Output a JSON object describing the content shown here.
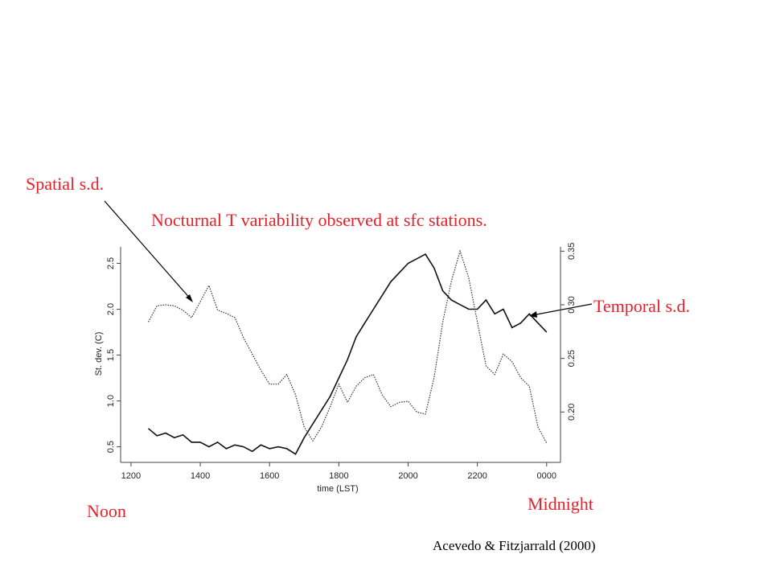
{
  "chart_data": {
    "type": "line",
    "title": "Nocturnal T variability observed at sfc stations.",
    "xlabel": "time (LST)",
    "ylabel": "St. dev. (C)",
    "annotations": [
      "Noon",
      "Midnight"
    ],
    "source": "Acevedo & Fitzjarrald (2000)",
    "x": [
      12.5,
      12.75,
      13,
      13.25,
      13.5,
      13.75,
      14,
      14.25,
      14.5,
      14.75,
      15,
      15.25,
      15.5,
      15.75,
      16,
      16.25,
      16.5,
      16.75,
      17,
      17.25,
      17.5,
      17.75,
      18,
      18.25,
      18.5,
      18.75,
      19,
      19.25,
      19.5,
      19.75,
      20,
      20.25,
      20.5,
      20.75,
      21,
      21.25,
      21.5,
      21.75,
      22,
      22.25,
      22.5,
      22.75,
      23,
      23.25,
      23.5,
      23.75,
      24
    ],
    "series": [
      {
        "name": "Temporal s.d.",
        "color": "#111111",
        "style": "solid",
        "axis": "y",
        "values": [
          0.7,
          0.62,
          0.65,
          0.6,
          0.63,
          0.55,
          0.55,
          0.5,
          0.55,
          0.48,
          0.52,
          0.5,
          0.45,
          0.52,
          0.48,
          0.5,
          0.48,
          0.42,
          0.6,
          0.75,
          0.9,
          1.05,
          1.25,
          1.45,
          1.7,
          1.85,
          2.0,
          2.15,
          2.3,
          2.4,
          2.5,
          2.55,
          2.6,
          2.45,
          2.2,
          2.1,
          2.05,
          2.0,
          2.0,
          2.1,
          1.95,
          2.0,
          1.8,
          1.85,
          1.95,
          1.85,
          1.75
        ]
      },
      {
        "name": "Spatial s.d.",
        "color": "#333333",
        "style": "dotted",
        "axis": "y2",
        "values": [
          0.284,
          0.299,
          0.3,
          0.299,
          0.295,
          0.288,
          0.303,
          0.318,
          0.295,
          0.292,
          0.288,
          0.269,
          0.254,
          0.239,
          0.226,
          0.226,
          0.235,
          0.216,
          0.186,
          0.173,
          0.186,
          0.205,
          0.226,
          0.209,
          0.224,
          0.232,
          0.235,
          0.216,
          0.205,
          0.209,
          0.21,
          0.2,
          0.198,
          0.232,
          0.284,
          0.322,
          0.35,
          0.325,
          0.284,
          0.243,
          0.235,
          0.254,
          0.247,
          0.232,
          0.224,
          0.186,
          0.171
        ]
      }
    ],
    "xlim": [
      11.7,
      24.4
    ],
    "xticks": [
      {
        "value": 12,
        "label": "1200"
      },
      {
        "value": 14,
        "label": "1400"
      },
      {
        "value": 16,
        "label": "1600"
      },
      {
        "value": 18,
        "label": "1800"
      },
      {
        "value": 20,
        "label": "2000"
      },
      {
        "value": 22,
        "label": "2200"
      },
      {
        "value": 24,
        "label": "0000"
      }
    ],
    "ylim": [
      0.33,
      2.68
    ],
    "yticks": [
      0.5,
      {
        "value": 1.0,
        "label": "1.0"
      },
      1.5,
      {
        "value": 2.0,
        "label": "2.0"
      },
      2.5
    ],
    "y2lim": [
      0.153,
      0.354
    ],
    "y2ticks": [
      {
        "value": 0.2,
        "label": "0.20"
      },
      0.25,
      {
        "value": 0.3,
        "label": "0.30"
      },
      0.35
    ]
  }
}
